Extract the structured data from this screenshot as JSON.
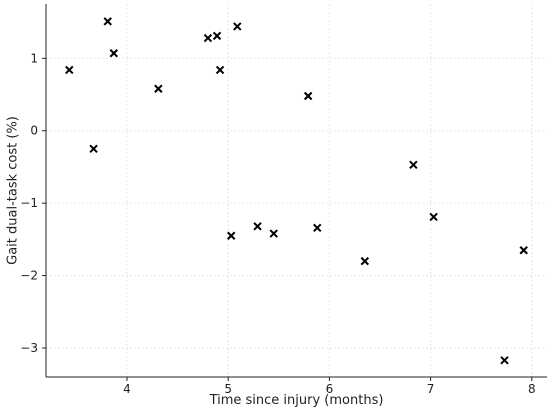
{
  "chart_data": {
    "type": "scatter",
    "title": "",
    "xlabel": "Time since injury (months)",
    "ylabel": "Gait dual-task cost (%)",
    "xlim": [
      3.2,
      8.15
    ],
    "ylim": [
      -3.4,
      1.75
    ],
    "xticks": [
      4,
      5,
      6,
      7,
      8
    ],
    "xtick_labels": [
      "4",
      "5",
      "6",
      "7",
      "8"
    ],
    "yticks": [
      -3,
      -2,
      -1,
      0,
      1
    ],
    "ytick_labels": [
      "−3",
      "−2",
      "−1",
      "0",
      "1"
    ],
    "grid": true,
    "marker": "x",
    "marker_color": "#000000",
    "points": [
      {
        "x": 3.43,
        "y": 0.84
      },
      {
        "x": 3.67,
        "y": -0.25
      },
      {
        "x": 3.81,
        "y": 1.51
      },
      {
        "x": 3.87,
        "y": 1.07
      },
      {
        "x": 4.31,
        "y": 0.58
      },
      {
        "x": 4.8,
        "y": 1.28
      },
      {
        "x": 4.89,
        "y": 1.31
      },
      {
        "x": 4.92,
        "y": 0.84
      },
      {
        "x": 5.03,
        "y": -1.45
      },
      {
        "x": 5.09,
        "y": 1.44
      },
      {
        "x": 5.29,
        "y": -1.32
      },
      {
        "x": 5.45,
        "y": -1.42
      },
      {
        "x": 5.79,
        "y": 0.48
      },
      {
        "x": 5.88,
        "y": -1.34
      },
      {
        "x": 6.35,
        "y": -1.8
      },
      {
        "x": 6.83,
        "y": -0.47
      },
      {
        "x": 7.03,
        "y": -1.19
      },
      {
        "x": 7.73,
        "y": -3.17
      },
      {
        "x": 7.92,
        "y": -1.65
      }
    ]
  }
}
